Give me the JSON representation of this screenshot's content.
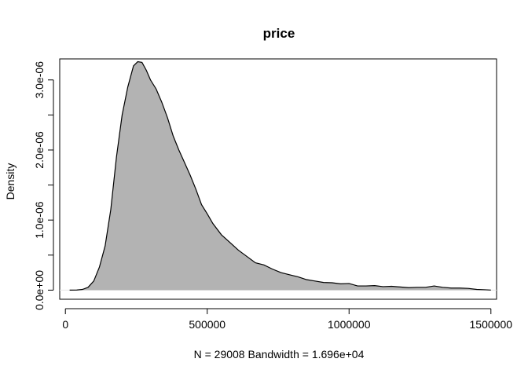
{
  "chart_data": {
    "type": "area",
    "title": "price",
    "xlabel": "N = 29008   Bandwidth = 1.696e+04",
    "ylabel": "Density",
    "xlim": [
      -20000,
      1520000
    ],
    "ylim": [
      -1.3e-07,
      3.3e-06
    ],
    "x_ticks": [
      0,
      500000,
      1000000,
      1500000
    ],
    "x_tick_labels": [
      "0",
      "500000",
      "1000000",
      "1500000"
    ],
    "y_ticks": [
      0,
      1e-06,
      2e-06,
      3e-06
    ],
    "y_tick_labels": [
      "0.0e+00",
      "1.0e-06",
      "2.0e-06",
      "3.0e-06"
    ],
    "grid": false,
    "legend": "none",
    "fill_color": "#b3b3b3",
    "line_color": "#000000",
    "series": [
      {
        "x": [
          15000,
          40000,
          60000,
          80000,
          100000,
          120000,
          140000,
          160000,
          180000,
          200000,
          220000,
          240000,
          255000,
          270000,
          285000,
          300000,
          320000,
          340000,
          360000,
          380000,
          400000,
          420000,
          440000,
          460000,
          480000,
          500000,
          520000,
          550000,
          580000,
          610000,
          640000,
          670000,
          700000,
          730000,
          760000,
          790000,
          820000,
          850000,
          880000,
          910000,
          940000,
          970000,
          1000000,
          1030000,
          1060000,
          1090000,
          1120000,
          1150000,
          1180000,
          1210000,
          1240000,
          1270000,
          1300000,
          1330000,
          1360000,
          1390000,
          1420000,
          1450000,
          1480000,
          1500000
        ],
        "y": [
          5e-10,
          2e-09,
          1e-08,
          4e-08,
          1.3e-07,
          3.3e-07,
          6.3e-07,
          1.15e-06,
          1.9e-06,
          2.5e-06,
          2.9e-06,
          3.2e-06,
          3.26e-06,
          3.25e-06,
          3.14e-06,
          3e-06,
          2.87e-06,
          2.68e-06,
          2.46e-06,
          2.2e-06,
          2e-06,
          1.82e-06,
          1.64e-06,
          1.44e-06,
          1.22e-06,
          1.09e-06,
          9.5e-07,
          7.9e-07,
          6.8e-07,
          5.7e-07,
          4.8e-07,
          3.9e-07,
          3.6e-07,
          3e-07,
          2.5e-07,
          2.2e-07,
          1.9e-07,
          1.5e-07,
          1.3e-07,
          1.1e-07,
          1.05e-07,
          9e-08,
          9.5e-08,
          6e-08,
          6e-08,
          6.5e-08,
          5e-08,
          5.5e-08,
          4.5e-08,
          3.5e-08,
          4e-08,
          4e-08,
          6e-08,
          4e-08,
          3e-08,
          3e-08,
          2.5e-08,
          1e-08,
          5e-09,
          1e-09
        ]
      }
    ]
  }
}
